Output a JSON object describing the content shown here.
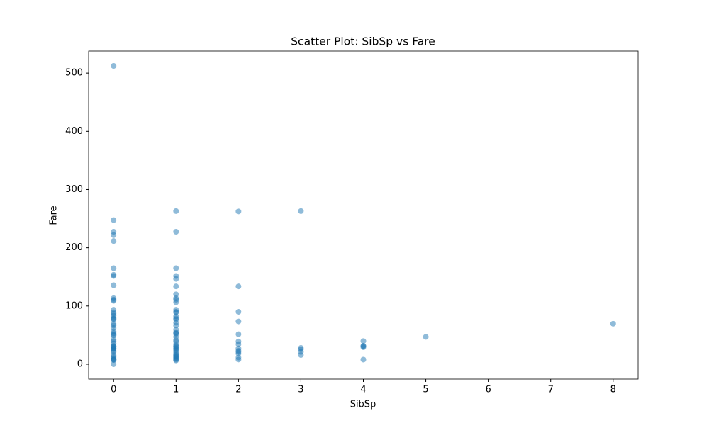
{
  "chart_data": {
    "type": "scatter",
    "title": "Scatter Plot: SibSp vs Fare",
    "xlabel": "SibSp",
    "ylabel": "Fare",
    "x": [
      0,
      0,
      0,
      0,
      0,
      0,
      0,
      0,
      0,
      0,
      0,
      0,
      0,
      0,
      0,
      0,
      0,
      0,
      0,
      0,
      0,
      0,
      0,
      0,
      0,
      0,
      0,
      0,
      0,
      0,
      0,
      0,
      0,
      0,
      0,
      0,
      0,
      0,
      0,
      0,
      0,
      0,
      0,
      0,
      1,
      1,
      1,
      1,
      1,
      1,
      1,
      1,
      1,
      1,
      1,
      1,
      1,
      1,
      1,
      1,
      1,
      1,
      1,
      1,
      1,
      1,
      1,
      1,
      1,
      1,
      1,
      1,
      1,
      1,
      1,
      1,
      1,
      1,
      1,
      1,
      1,
      1,
      1,
      1,
      2,
      2,
      2,
      2,
      2,
      2,
      2,
      2,
      2,
      2,
      2,
      2,
      2,
      3,
      3,
      3,
      3,
      3,
      4,
      4,
      4,
      4,
      4,
      5,
      8
    ],
    "values": [
      512.33,
      247.52,
      227.53,
      221.78,
      211.5,
      164.87,
      153.46,
      151.55,
      135.63,
      113.28,
      110.88,
      108.9,
      93.5,
      89.1,
      86.5,
      83.16,
      79.2,
      77.96,
      76.73,
      69.3,
      66.6,
      61.98,
      56.5,
      53.1,
      50.5,
      49.5,
      42.4,
      39.6,
      35.5,
      31,
      30.5,
      29.7,
      27.72,
      26.55,
      26,
      23,
      21,
      15.5,
      13,
      10.5,
      8.05,
      7.75,
      7.25,
      0,
      263,
      227.53,
      164.87,
      151.55,
      146.52,
      133.65,
      120,
      113.28,
      110.88,
      106.42,
      93.5,
      90,
      89.1,
      82.17,
      78.85,
      76.73,
      71.28,
      66.6,
      59.4,
      55,
      53.1,
      52,
      46.9,
      41.58,
      39,
      34.38,
      31.39,
      30,
      27.72,
      26,
      24,
      21,
      18,
      15.85,
      14.45,
      13,
      11.24,
      9.82,
      7.85,
      6.5,
      262.38,
      133.65,
      90,
      73.5,
      51.48,
      39,
      34.38,
      27,
      23.25,
      21,
      18,
      11.5,
      8.05,
      263,
      27.9,
      25.47,
      21.08,
      15.85,
      39.69,
      31.39,
      31.27,
      29.12,
      7.92,
      46.9,
      69.55
    ],
    "color": "#1f77b4",
    "alpha": 0.5,
    "xlim": [
      -0.4,
      8.4
    ],
    "xticks": [
      0,
      1,
      2,
      3,
      4,
      5,
      6,
      7,
      8
    ],
    "ylim": [
      -25.6,
      537.9
    ],
    "yticks": [
      0,
      100,
      200,
      300,
      400,
      500
    ]
  }
}
